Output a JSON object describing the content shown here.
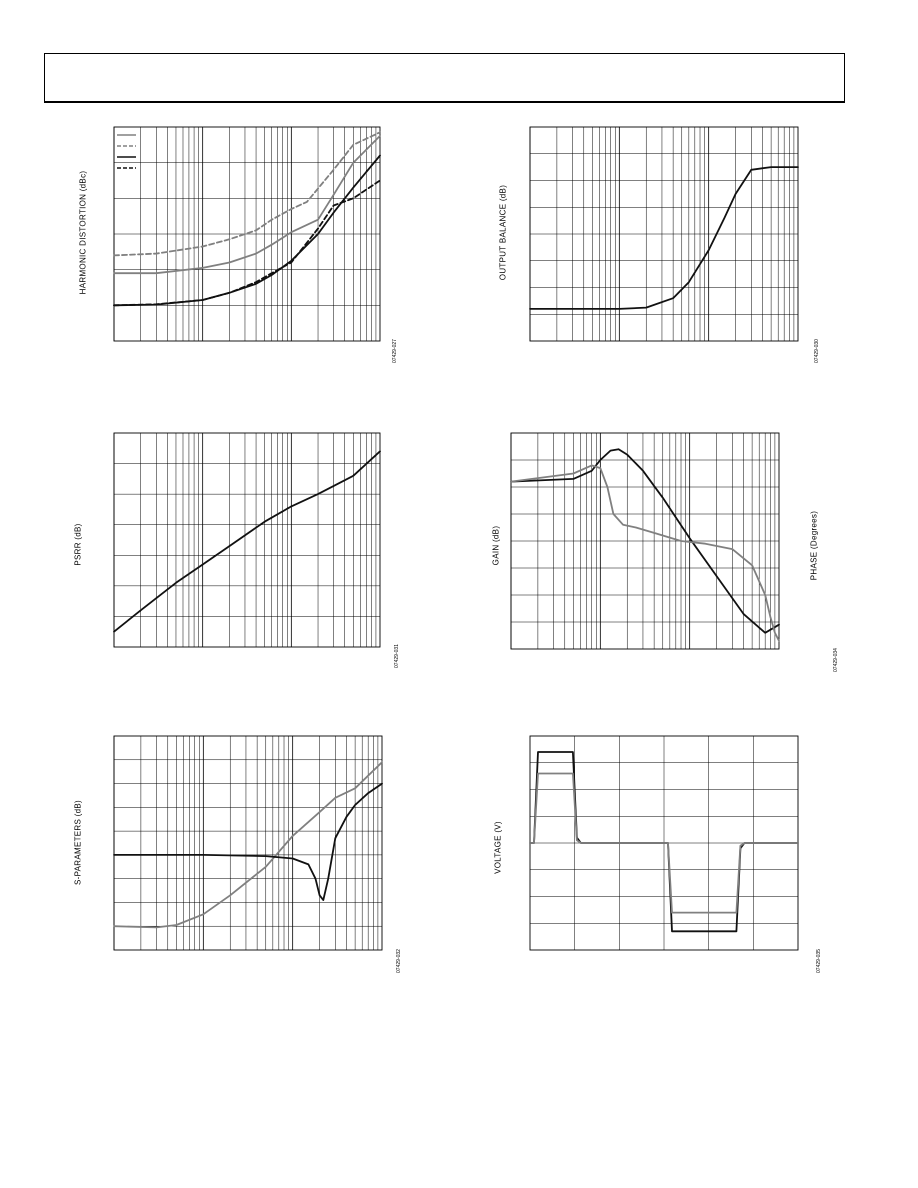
{
  "header": {},
  "colors": {
    "black": "#111111",
    "gray": "#808080"
  },
  "chart_data": [
    {
      "id": "hd",
      "type": "line",
      "title": "",
      "ylabel": "HARMONIC DISTORTION (dBc)",
      "xlabel": "",
      "code": "07429-027",
      "xscale": "log",
      "xlim": [
        1,
        1000
      ],
      "ylim": [
        0,
        6
      ],
      "grid": true,
      "series": [
        {
          "color": "#808080",
          "dash": false,
          "x": [
            1,
            3,
            10,
            20,
            40,
            60,
            100,
            200,
            300,
            500,
            1000
          ],
          "y": [
            1.9,
            1.9,
            2.05,
            2.2,
            2.45,
            2.7,
            3.05,
            3.4,
            4.1,
            5.0,
            5.75
          ]
        },
        {
          "color": "#808080",
          "dash": true,
          "x": [
            1,
            3,
            10,
            20,
            40,
            60,
            100,
            150,
            300,
            500,
            1000
          ],
          "y": [
            2.4,
            2.45,
            2.65,
            2.85,
            3.1,
            3.4,
            3.7,
            3.9,
            4.8,
            5.5,
            5.85
          ]
        },
        {
          "color": "#111111",
          "dash": false,
          "x": [
            1,
            3,
            10,
            20,
            40,
            60,
            100,
            200,
            300,
            500,
            1000
          ],
          "y": [
            1.0,
            1.02,
            1.15,
            1.35,
            1.6,
            1.85,
            2.25,
            3.0,
            3.6,
            4.3,
            5.2
          ]
        },
        {
          "color": "#111111",
          "dash": true,
          "x": [
            1,
            3,
            10,
            20,
            40,
            60,
            100,
            200,
            300,
            500,
            1000
          ],
          "y": [
            1.0,
            1.03,
            1.15,
            1.35,
            1.65,
            1.9,
            2.2,
            3.15,
            3.8,
            4.0,
            4.5
          ]
        }
      ]
    },
    {
      "id": "ob",
      "type": "line",
      "title": "",
      "ylabel": "OUTPUT BALANCE (dB)",
      "xlabel": "",
      "code": "07429-030",
      "xscale": "log",
      "xlim": [
        1,
        1000
      ],
      "ylim": [
        0,
        8
      ],
      "grid": true,
      "series": [
        {
          "color": "#111111",
          "dash": false,
          "x": [
            1,
            10,
            20,
            40,
            60,
            100,
            150,
            200,
            300,
            500,
            1000
          ],
          "y": [
            1.2,
            1.2,
            1.25,
            1.6,
            2.2,
            3.4,
            4.6,
            5.5,
            6.4,
            6.5,
            6.5
          ]
        }
      ]
    },
    {
      "id": "psrr",
      "type": "line",
      "title": "",
      "ylabel": "PSRR (dB)",
      "xlabel": "",
      "code": "07429-031",
      "xscale": "log",
      "xlim": [
        1,
        1000
      ],
      "ylim": [
        0,
        7
      ],
      "grid": true,
      "series": [
        {
          "color": "#111111",
          "dash": false,
          "x": [
            1,
            2,
            5,
            10,
            20,
            50,
            100,
            200,
            500,
            1000
          ],
          "y": [
            0.5,
            1.2,
            2.1,
            2.7,
            3.3,
            4.1,
            4.6,
            5.0,
            5.6,
            6.4
          ]
        }
      ]
    },
    {
      "id": "gp",
      "type": "line",
      "title": "",
      "ylabel": "GAIN (dB)",
      "y2label": "PHASE (Degrees)",
      "xlabel": "",
      "code": "07429-034",
      "xscale": "log",
      "xlim": [
        1,
        1000
      ],
      "ylim": [
        0,
        8
      ],
      "grid": true,
      "series": [
        {
          "color": "#111111",
          "dash": false,
          "x": [
            1,
            5,
            8,
            10,
            13,
            16,
            20,
            30,
            50,
            100,
            200,
            400,
            700,
            1000
          ],
          "y": [
            6.2,
            6.3,
            6.6,
            7.0,
            7.35,
            7.4,
            7.2,
            6.6,
            5.6,
            4.1,
            2.7,
            1.3,
            0.6,
            0.9
          ]
        },
        {
          "color": "#808080",
          "dash": false,
          "x": [
            1,
            5,
            8,
            10,
            12,
            14,
            18,
            25,
            40,
            80,
            150,
            300,
            500,
            700,
            800,
            900,
            1000
          ],
          "y": [
            6.2,
            6.5,
            6.8,
            6.7,
            6.0,
            5.0,
            4.6,
            4.5,
            4.3,
            4.0,
            3.9,
            3.7,
            3.1,
            2.0,
            1.2,
            0.6,
            0.3
          ]
        }
      ]
    },
    {
      "id": "sp",
      "type": "line",
      "title": "",
      "ylabel": "S-PARAMETERS (dB)",
      "xlabel": "",
      "code": "07429-032",
      "xscale": "log",
      "xlim": [
        1,
        1000
      ],
      "ylim": [
        0,
        9
      ],
      "grid": true,
      "series": [
        {
          "color": "#808080",
          "dash": false,
          "x": [
            1,
            3,
            5,
            10,
            20,
            50,
            100,
            200,
            300,
            500,
            1000
          ],
          "y": [
            1.0,
            0.95,
            1.05,
            1.5,
            2.3,
            3.5,
            4.8,
            5.8,
            6.4,
            6.8,
            7.9
          ]
        },
        {
          "color": "#111111",
          "dash": false,
          "x": [
            1,
            10,
            50,
            100,
            150,
            180,
            200,
            220,
            250,
            300,
            400,
            500,
            700,
            1000
          ],
          "y": [
            4.0,
            4.0,
            3.95,
            3.85,
            3.6,
            3.0,
            2.3,
            2.1,
            3.0,
            4.7,
            5.6,
            6.1,
            6.6,
            7.0
          ]
        }
      ]
    },
    {
      "id": "vt",
      "type": "line",
      "title": "",
      "ylabel": "VOLTAGE (V)",
      "xlabel": "",
      "code": "07429-035",
      "xlim": [
        0,
        10
      ],
      "ylim": [
        -4,
        4
      ],
      "grid": true,
      "series": [
        {
          "color": "#111111",
          "dash": false,
          "x": [
            0,
            0.15,
            0.3,
            1.6,
            1.75,
            1.9,
            2.3,
            3.3,
            5.0,
            5.15,
            5.3,
            7.7,
            7.85,
            8.0,
            8.4,
            10
          ],
          "y": [
            0,
            0,
            3.4,
            3.4,
            0.2,
            0,
            0,
            0,
            0,
            0,
            -3.3,
            -3.3,
            -0.2,
            0,
            0,
            0
          ]
        },
        {
          "color": "#808080",
          "dash": false,
          "x": [
            0,
            0.15,
            0.3,
            1.6,
            1.75,
            1.9,
            2.3,
            5.0,
            5.15,
            5.3,
            7.7,
            7.85,
            8.0,
            8.4,
            10
          ],
          "y": [
            0,
            0,
            2.6,
            2.6,
            0.1,
            0,
            0,
            0,
            0,
            -2.6,
            -2.6,
            -0.1,
            0,
            0,
            0
          ]
        }
      ]
    }
  ]
}
